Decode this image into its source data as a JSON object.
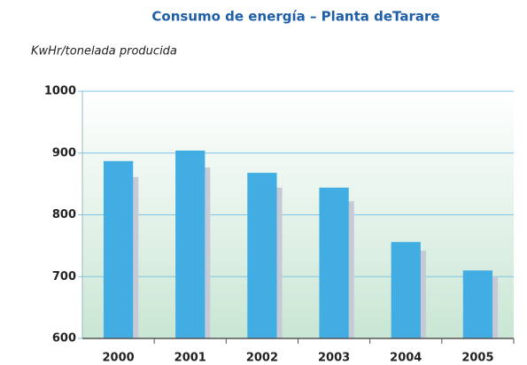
{
  "chart_data": {
    "type": "bar",
    "title": "Consumo de energía – Planta deTarare",
    "subtitle": "KwHr/tonelada producida",
    "categories": [
      "2000",
      "2001",
      "2002",
      "2003",
      "2004",
      "2005"
    ],
    "values": [
      887,
      904,
      868,
      844,
      756,
      710
    ],
    "color": "#41ade2",
    "ylim": [
      600,
      1000
    ],
    "yticks": [
      600,
      700,
      800,
      900,
      1000
    ],
    "grid": true
  }
}
